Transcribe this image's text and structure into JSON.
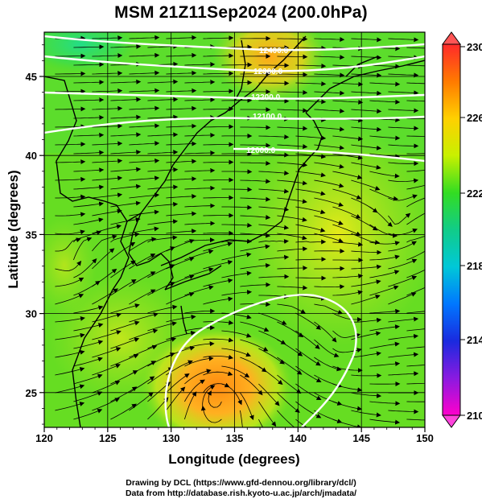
{
  "title": "MSM 21Z11Sep2024 (200.0hPa)",
  "x_axis": {
    "label": "Longitude (degrees)",
    "ticks": [
      "120",
      "125",
      "130",
      "135",
      "140",
      "145",
      "150"
    ]
  },
  "y_axis": {
    "label": "Latitude  (degrees)",
    "ticks": [
      "25",
      "30",
      "35",
      "40",
      "45"
    ]
  },
  "colorbar": {
    "ticks": [
      "230",
      "226",
      "222",
      "218",
      "214",
      "210"
    ],
    "colors": [
      "#ff2a2a",
      "#ff7a00",
      "#ffd000",
      "#c8f000",
      "#33dd22",
      "#11cc88",
      "#00c8d8",
      "#0077ff",
      "#1a2adf",
      "#8a1ae0",
      "#ff00cc"
    ]
  },
  "contour_labels": [
    "12400.0",
    "12300.0",
    "12200.0",
    "12100.0",
    "12000.0"
  ],
  "footer": {
    "line1": "Drawing by DCL (https://www.gfd-dennou.org/library/dcl/)",
    "line2": "Data from http://database.rish.kyoto-u.ac.jp/arch/jmadata/"
  },
  "map_data": {
    "lon_range": [
      120,
      150
    ],
    "lat_range": [
      22.8,
      47.8
    ],
    "field": "temperature / height at 200.0hPa with wind streamlines"
  }
}
